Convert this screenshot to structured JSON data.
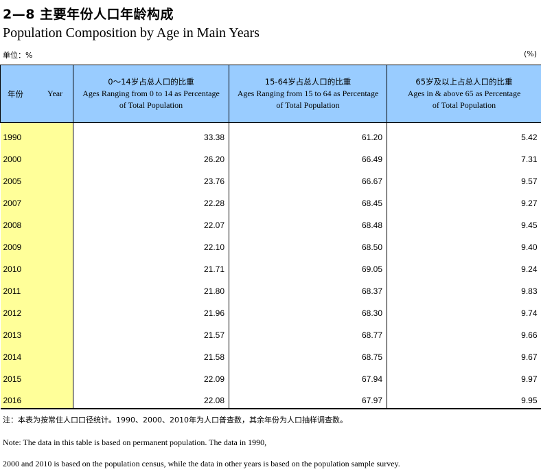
{
  "header": {
    "title_cn": "2—8 主要年份人口年龄构成",
    "title_en": "Population Composition by Age in Main Years",
    "unit": "单位：%",
    "percent_mark": "(%)"
  },
  "table": {
    "col_year_cn": "年份",
    "col_year_en": "Year",
    "col1_cn": "0～14岁占总人口的比重",
    "col1_en_a": "Ages Ranging from 0 to 14 as Percentage",
    "col1_en_b": "of Total Population",
    "col2_cn": "15-64岁占总人口的比重",
    "col2_en_a": "Ages Ranging from 15 to 64 as Percentage",
    "col2_en_b": "of Total Population",
    "col3_cn": "65岁及以上占总人口的比重",
    "col3_en_a": "Ages in & above 65 as Percentage",
    "col3_en_b": "of Total Population",
    "rows": [
      {
        "year": "1990",
        "a": "33.38",
        "b": "61.20",
        "c": "5.42"
      },
      {
        "year": "2000",
        "a": "26.20",
        "b": "66.49",
        "c": "7.31"
      },
      {
        "year": "2005",
        "a": "23.76",
        "b": "66.67",
        "c": "9.57"
      },
      {
        "year": "2007",
        "a": "22.28",
        "b": "68.45",
        "c": "9.27"
      },
      {
        "year": "2008",
        "a": "22.07",
        "b": "68.48",
        "c": "9.45"
      },
      {
        "year": "2009",
        "a": "22.10",
        "b": "68.50",
        "c": "9.40"
      },
      {
        "year": "2010",
        "a": "21.71",
        "b": "69.05",
        "c": "9.24"
      },
      {
        "year": "2011",
        "a": "21.80",
        "b": "68.37",
        "c": "9.83"
      },
      {
        "year": "2012",
        "a": "21.96",
        "b": "68.30",
        "c": "9.74"
      },
      {
        "year": "2013",
        "a": "21.57",
        "b": "68.77",
        "c": "9.66"
      },
      {
        "year": "2014",
        "a": "21.58",
        "b": "68.75",
        "c": "9.67"
      },
      {
        "year": "2015",
        "a": "22.09",
        "b": "67.94",
        "c": "9.97"
      },
      {
        "year": "2016",
        "a": "22.08",
        "b": "67.97",
        "c": "9.95"
      }
    ]
  },
  "notes": {
    "cn": "注：本表为按常住人口口径统计。1990、2000、2010年为人口普查数，其余年份为人口抽样调查数。",
    "en_1": "Note:  The data in this table is based on permanent population. The data in 1990,",
    "en_2": "2000 and 2010 is based on the population census, while the data in other years is based on the population sample survey."
  },
  "colors": {
    "header_bg": "#99ccff",
    "year_col_bg": "#ffff99"
  }
}
